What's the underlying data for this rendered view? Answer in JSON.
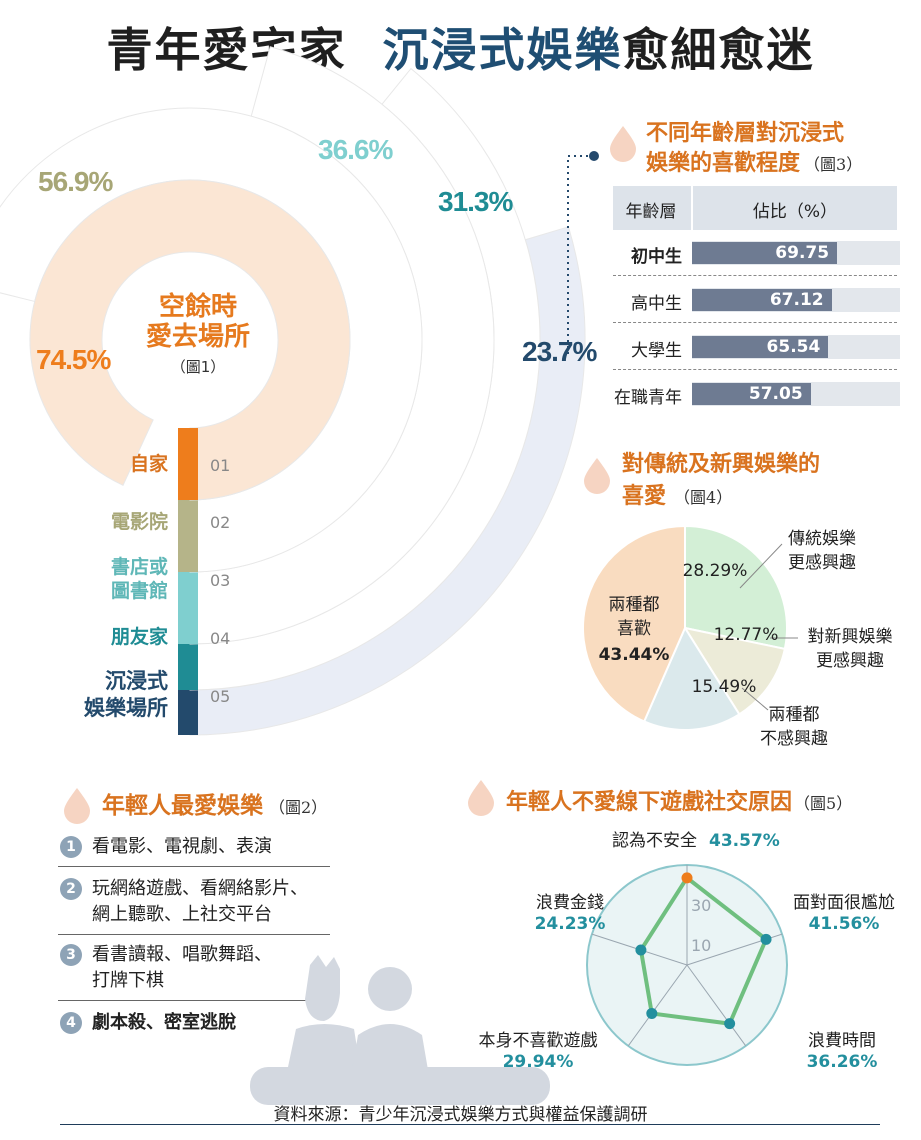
{
  "title": {
    "part1": "青年愛宅家",
    "part2": "沉浸式娛樂",
    "part3": "愈細愈迷"
  },
  "source": "資料來源：青少年沉浸式娛樂方式與權益保護調研",
  "colors": {
    "orange": "#ee7d1c",
    "olive": "#bdbd9b",
    "lightteal": "#9fd6d6",
    "teal": "#2b8c95",
    "navy": "#24496c",
    "accent": "#d9731f"
  },
  "chart_data": [
    {
      "type": "radial-bar",
      "title": "空餘時愛去場所",
      "fig": "（圖1）",
      "categories": [
        {
          "label": "自家",
          "num": "01",
          "value": 74.5,
          "pct": "74.5%",
          "color": "#ee7d1c"
        },
        {
          "label": "電影院",
          "num": "02",
          "value": 56.9,
          "pct": "56.9%",
          "color": "#b5b489"
        },
        {
          "label": "書店或圖書館",
          "label_lines": [
            "書店或",
            "圖書館"
          ],
          "num": "03",
          "value": 36.6,
          "pct": "36.6%",
          "color": "#7fcfcf"
        },
        {
          "label": "朋友家",
          "num": "04",
          "value": 31.3,
          "pct": "31.3%",
          "color": "#1f8c94"
        },
        {
          "label": "沉浸式娛樂場所",
          "label_lines": [
            "沉浸式",
            "娛樂場所"
          ],
          "num": "05",
          "value": 23.7,
          "pct": "23.7%",
          "color": "#234a6c"
        }
      ]
    },
    {
      "type": "bar",
      "title_lines": [
        "不同年齡層對沉浸式",
        "娛樂的喜歡程度"
      ],
      "fig": "（圖3）",
      "header": {
        "col1": "年齡層",
        "col2": "佔比（%）"
      },
      "categories": [
        "初中生",
        "高中生",
        "大學生",
        "在職青年"
      ],
      "values": [
        69.75,
        67.12,
        65.54,
        57.05
      ],
      "labels": [
        "69.75",
        "67.12",
        "65.54",
        "57.05"
      ]
    },
    {
      "type": "pie",
      "title_lines": [
        "對傳統及新興娛樂的",
        "喜愛"
      ],
      "fig": "（圖4）",
      "slices": [
        {
          "label": "兩種都喜歡",
          "label_lines": [
            "兩種都",
            "喜歡"
          ],
          "value": 43.44,
          "pct": "43.44%",
          "color": "#f9dcc0"
        },
        {
          "label": "傳統娛樂更感興趣",
          "label_lines": [
            "傳統娛樂",
            "更感興趣"
          ],
          "value": 28.29,
          "pct": "28.29%",
          "color": "#d3efd6"
        },
        {
          "label": "對新興娛樂更感興趣",
          "label_lines": [
            "對新興娛樂",
            "更感興趣"
          ],
          "value": 12.77,
          "pct": "12.77%",
          "color": "#ecebd8"
        },
        {
          "label": "兩種都不感興趣",
          "label_lines": [
            "兩種都",
            "不感興趣"
          ],
          "value": 15.49,
          "pct": "15.49%",
          "color": "#dbe9ec"
        }
      ]
    },
    {
      "type": "radar",
      "title": "年輕人不愛線下遊戲社交原因",
      "fig": "（圖5）",
      "ticks": [
        "10",
        "30"
      ],
      "rmax": 50,
      "axes": [
        {
          "label": "認為不安全",
          "value": 43.57,
          "pct": "43.57%"
        },
        {
          "label": "面對面很尷尬",
          "value": 41.56,
          "pct": "41.56%"
        },
        {
          "label": "浪費時間",
          "value": 36.26,
          "pct": "36.26%"
        },
        {
          "label": "本身不喜歡遊戲",
          "value": 29.94,
          "pct": "29.94%"
        },
        {
          "label": "浪費金錢",
          "value": 24.23,
          "pct": "24.23%"
        }
      ]
    }
  ],
  "list2": {
    "title": "年輕人最愛娛樂",
    "fig": "（圖2）",
    "items": [
      {
        "num": "1",
        "lines": [
          "看電影、電視劇、表演"
        ]
      },
      {
        "num": "2",
        "lines": [
          "玩網絡遊戲、看網絡影片、",
          "網上聽歌、上社交平台"
        ]
      },
      {
        "num": "3",
        "lines": [
          "看書讀報、唱歌舞蹈、",
          "打牌下棋"
        ]
      },
      {
        "num": "4",
        "lines": [
          "劇本殺、密室逃脫"
        ]
      }
    ]
  }
}
